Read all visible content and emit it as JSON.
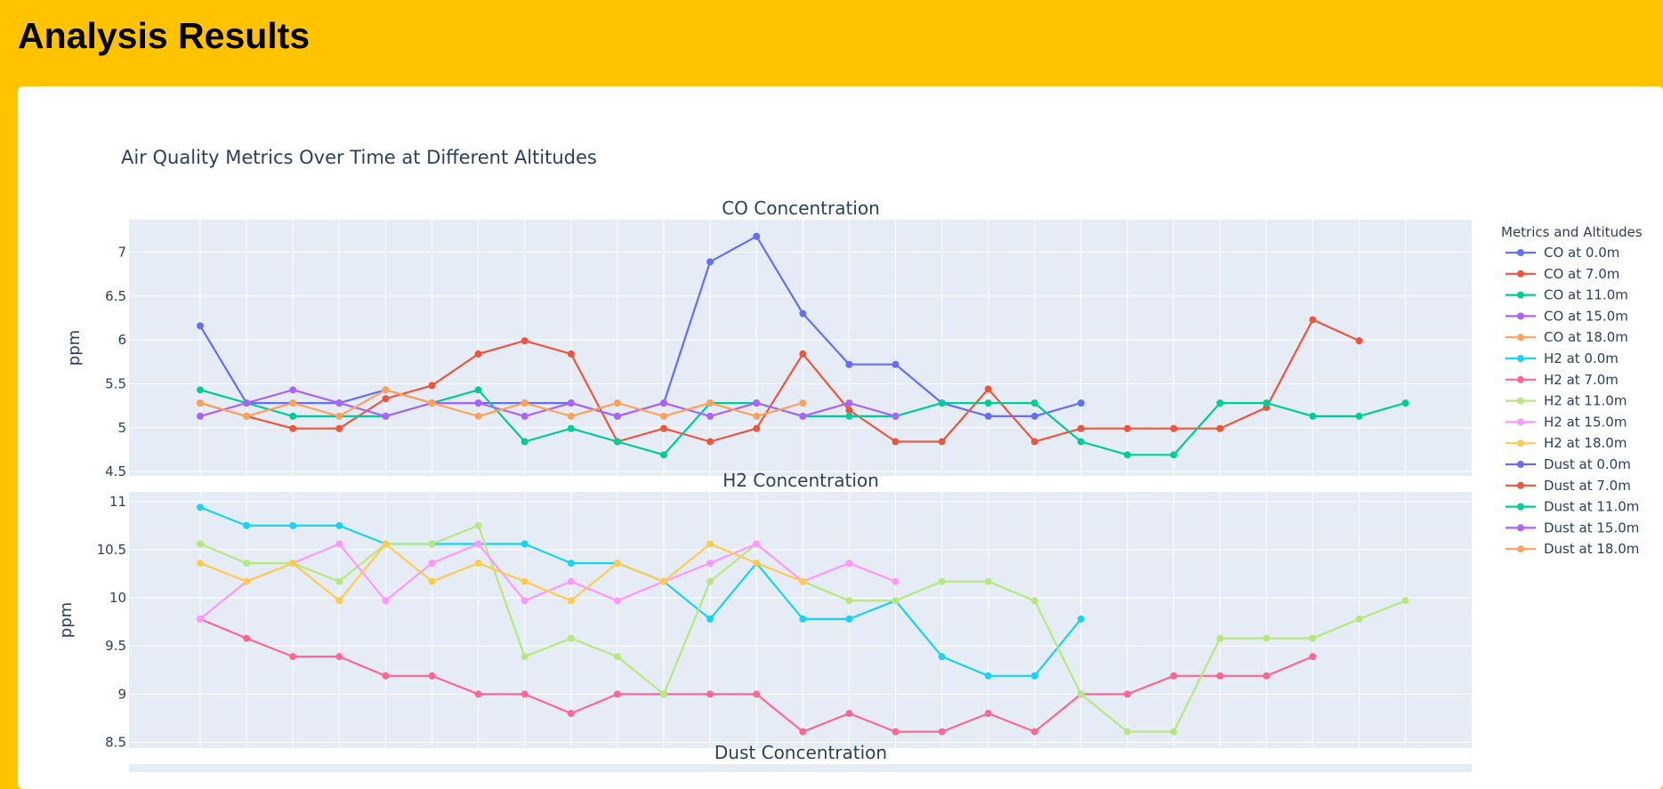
{
  "header": {
    "title": "Analysis Results"
  },
  "figure": {
    "title": "Air Quality Metrics Over Time at Different Altitudes"
  },
  "legend": {
    "title": "Metrics and Altitudes",
    "entries": [
      {
        "label": "CO at 0.0m",
        "color": "#636EFA"
      },
      {
        "label": "CO at 7.0m",
        "color": "#EF553B"
      },
      {
        "label": "CO at 11.0m",
        "color": "#00CC96"
      },
      {
        "label": "CO at 15.0m",
        "color": "#AB63FA"
      },
      {
        "label": "CO at 18.0m",
        "color": "#FFA15A"
      },
      {
        "label": "H2 at 0.0m",
        "color": "#19D3F3"
      },
      {
        "label": "H2 at 7.0m",
        "color": "#FF6692"
      },
      {
        "label": "H2 at 11.0m",
        "color": "#B6E880"
      },
      {
        "label": "H2 at 15.0m",
        "color": "#FF97FF"
      },
      {
        "label": "H2 at 18.0m",
        "color": "#FECB52"
      },
      {
        "label": "Dust at 0.0m",
        "color": "#636EFA"
      },
      {
        "label": "Dust at 7.0m",
        "color": "#EF553B"
      },
      {
        "label": "Dust at 11.0m",
        "color": "#00CC96"
      },
      {
        "label": "Dust at 15.0m",
        "color": "#AB63FA"
      },
      {
        "label": "Dust at 18.0m",
        "color": "#FFA15A"
      }
    ]
  },
  "chart_data": [
    {
      "type": "line",
      "title": "CO Concentration",
      "ylabel": "ppm",
      "ylim": [
        4.45,
        7.37
      ],
      "yticks": [
        4.5,
        5,
        5.5,
        6,
        6.5,
        7
      ],
      "ytick_labels": [
        "4.5",
        "5",
        "5.5",
        "6",
        "6.5",
        "7"
      ],
      "x_steps": 26,
      "series": [
        {
          "name": "CO at 0.0m",
          "color": "#636EFA",
          "values": [
            6.16,
            5.28,
            5.28,
            5.28,
            5.43,
            5.28,
            5.28,
            5.28,
            5.28,
            5.13,
            5.28,
            6.89,
            7.18,
            6.3,
            5.72,
            5.72,
            5.28,
            5.13,
            5.13,
            5.28
          ]
        },
        {
          "name": "CO at 7.0m",
          "color": "#EF553B",
          "values": [
            5.28,
            5.13,
            4.99,
            4.99,
            5.33,
            5.48,
            5.84,
            5.99,
            5.84,
            4.84,
            4.99,
            4.84,
            4.99,
            5.84,
            5.2,
            4.84,
            4.84,
            5.44,
            4.84,
            4.99,
            4.99,
            4.99,
            4.99,
            5.23,
            6.23,
            5.99
          ]
        },
        {
          "name": "CO at 11.0m",
          "color": "#00CC96",
          "values": [
            5.43,
            5.28,
            5.13,
            5.13,
            5.13,
            5.28,
            5.43,
            4.84,
            4.99,
            4.84,
            4.69,
            5.28,
            5.28,
            5.13,
            5.13,
            5.13,
            5.28,
            5.28,
            5.28,
            4.84,
            4.69,
            4.69,
            5.28,
            5.28,
            5.13,
            5.13,
            5.28
          ]
        },
        {
          "name": "CO at 15.0m",
          "color": "#AB63FA",
          "values": [
            5.13,
            5.28,
            5.43,
            5.28,
            5.13,
            5.28,
            5.28,
            5.13,
            5.28,
            5.13,
            5.28,
            5.13,
            5.28,
            5.13,
            5.28,
            5.13
          ]
        },
        {
          "name": "CO at 18.0m",
          "color": "#FFA15A",
          "values": [
            5.28,
            5.13,
            5.28,
            5.13,
            5.43,
            5.28,
            5.13,
            5.28,
            5.13,
            5.28,
            5.13,
            5.28,
            5.13,
            5.28
          ]
        }
      ]
    },
    {
      "type": "line",
      "title": "H2 Concentration",
      "ylabel": "ppm",
      "ylim": [
        8.44,
        11.1
      ],
      "yticks": [
        8.5,
        9,
        9.5,
        10,
        10.5,
        11
      ],
      "ytick_labels": [
        "8.5",
        "9",
        "9.5",
        "10",
        "10.5",
        "11"
      ],
      "x_steps": 26,
      "series": [
        {
          "name": "H2 at 0.0m",
          "color": "#19D3F3",
          "values": [
            10.94,
            10.75,
            10.75,
            10.75,
            10.56,
            10.56,
            10.56,
            10.56,
            10.36,
            10.36,
            10.17,
            9.78,
            10.36,
            9.78,
            9.78,
            9.97,
            9.39,
            9.19,
            9.19,
            9.78
          ]
        },
        {
          "name": "H2 at 7.0m",
          "color": "#FF6692",
          "values": [
            9.78,
            9.58,
            9.39,
            9.39,
            9.19,
            9.19,
            9.0,
            9.0,
            8.8,
            9.0,
            9.0,
            9.0,
            9.0,
            8.61,
            8.8,
            8.61,
            8.61,
            8.8,
            8.61,
            9.0,
            9.0,
            9.19,
            9.19,
            9.19,
            9.39
          ]
        },
        {
          "name": "H2 at 11.0m",
          "color": "#B6E880",
          "values": [
            10.56,
            10.36,
            10.36,
            10.17,
            10.56,
            10.56,
            10.75,
            9.39,
            9.58,
            9.39,
            9.0,
            10.17,
            10.56,
            10.17,
            9.97,
            9.97,
            10.17,
            10.17,
            9.97,
            9.0,
            8.61,
            8.61,
            9.58,
            9.58,
            9.58,
            9.78,
            9.97
          ]
        },
        {
          "name": "H2 at 15.0m",
          "color": "#FF97FF",
          "values": [
            9.78,
            10.17,
            10.36,
            10.56,
            9.97,
            10.36,
            10.56,
            9.97,
            10.17,
            9.97,
            10.17,
            10.36,
            10.56,
            10.17,
            10.36,
            10.17
          ]
        },
        {
          "name": "H2 at 18.0m",
          "color": "#FECB52",
          "values": [
            10.36,
            10.17,
            10.36,
            9.97,
            10.56,
            10.17,
            10.36,
            10.17,
            9.97,
            10.36,
            10.17,
            10.56,
            10.36,
            10.17
          ]
        }
      ]
    },
    {
      "type": "line",
      "title": "Dust Concentration",
      "ylabel": "",
      "series": []
    }
  ]
}
